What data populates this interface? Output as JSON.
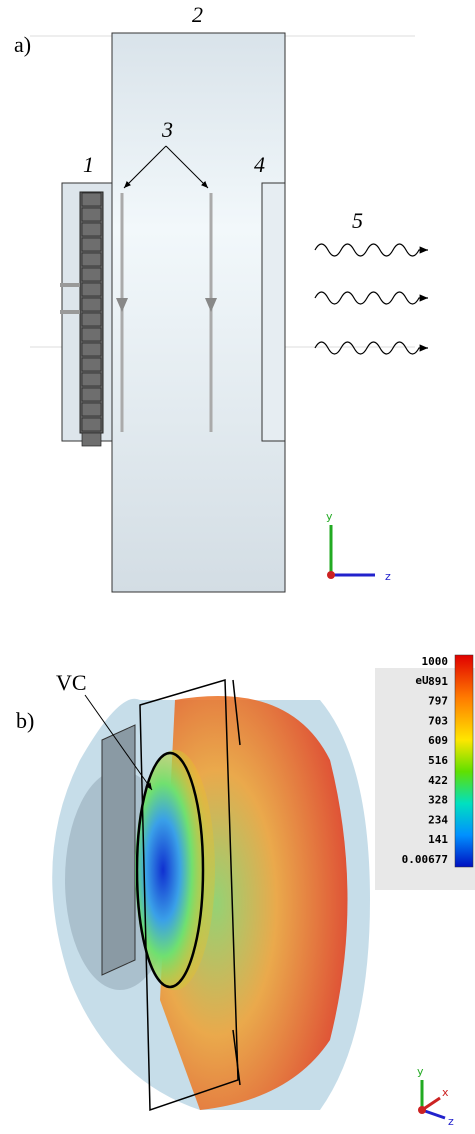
{
  "panel_a": {
    "label": "a)",
    "callouts": {
      "device": "2",
      "beams": "3",
      "source": "1",
      "window": "4",
      "radiation": "5"
    },
    "axes": {
      "y": "y",
      "z": "z"
    }
  },
  "panel_b": {
    "label": "b)",
    "annotation": "VC",
    "colorbar": {
      "unit": "eU",
      "labels": [
        "1000",
        "891",
        "797",
        "703",
        "609",
        "516",
        "422",
        "328",
        "234",
        "141",
        "0.00677"
      ]
    },
    "axes": {
      "y": "y",
      "x": "x",
      "z": "z"
    }
  }
}
